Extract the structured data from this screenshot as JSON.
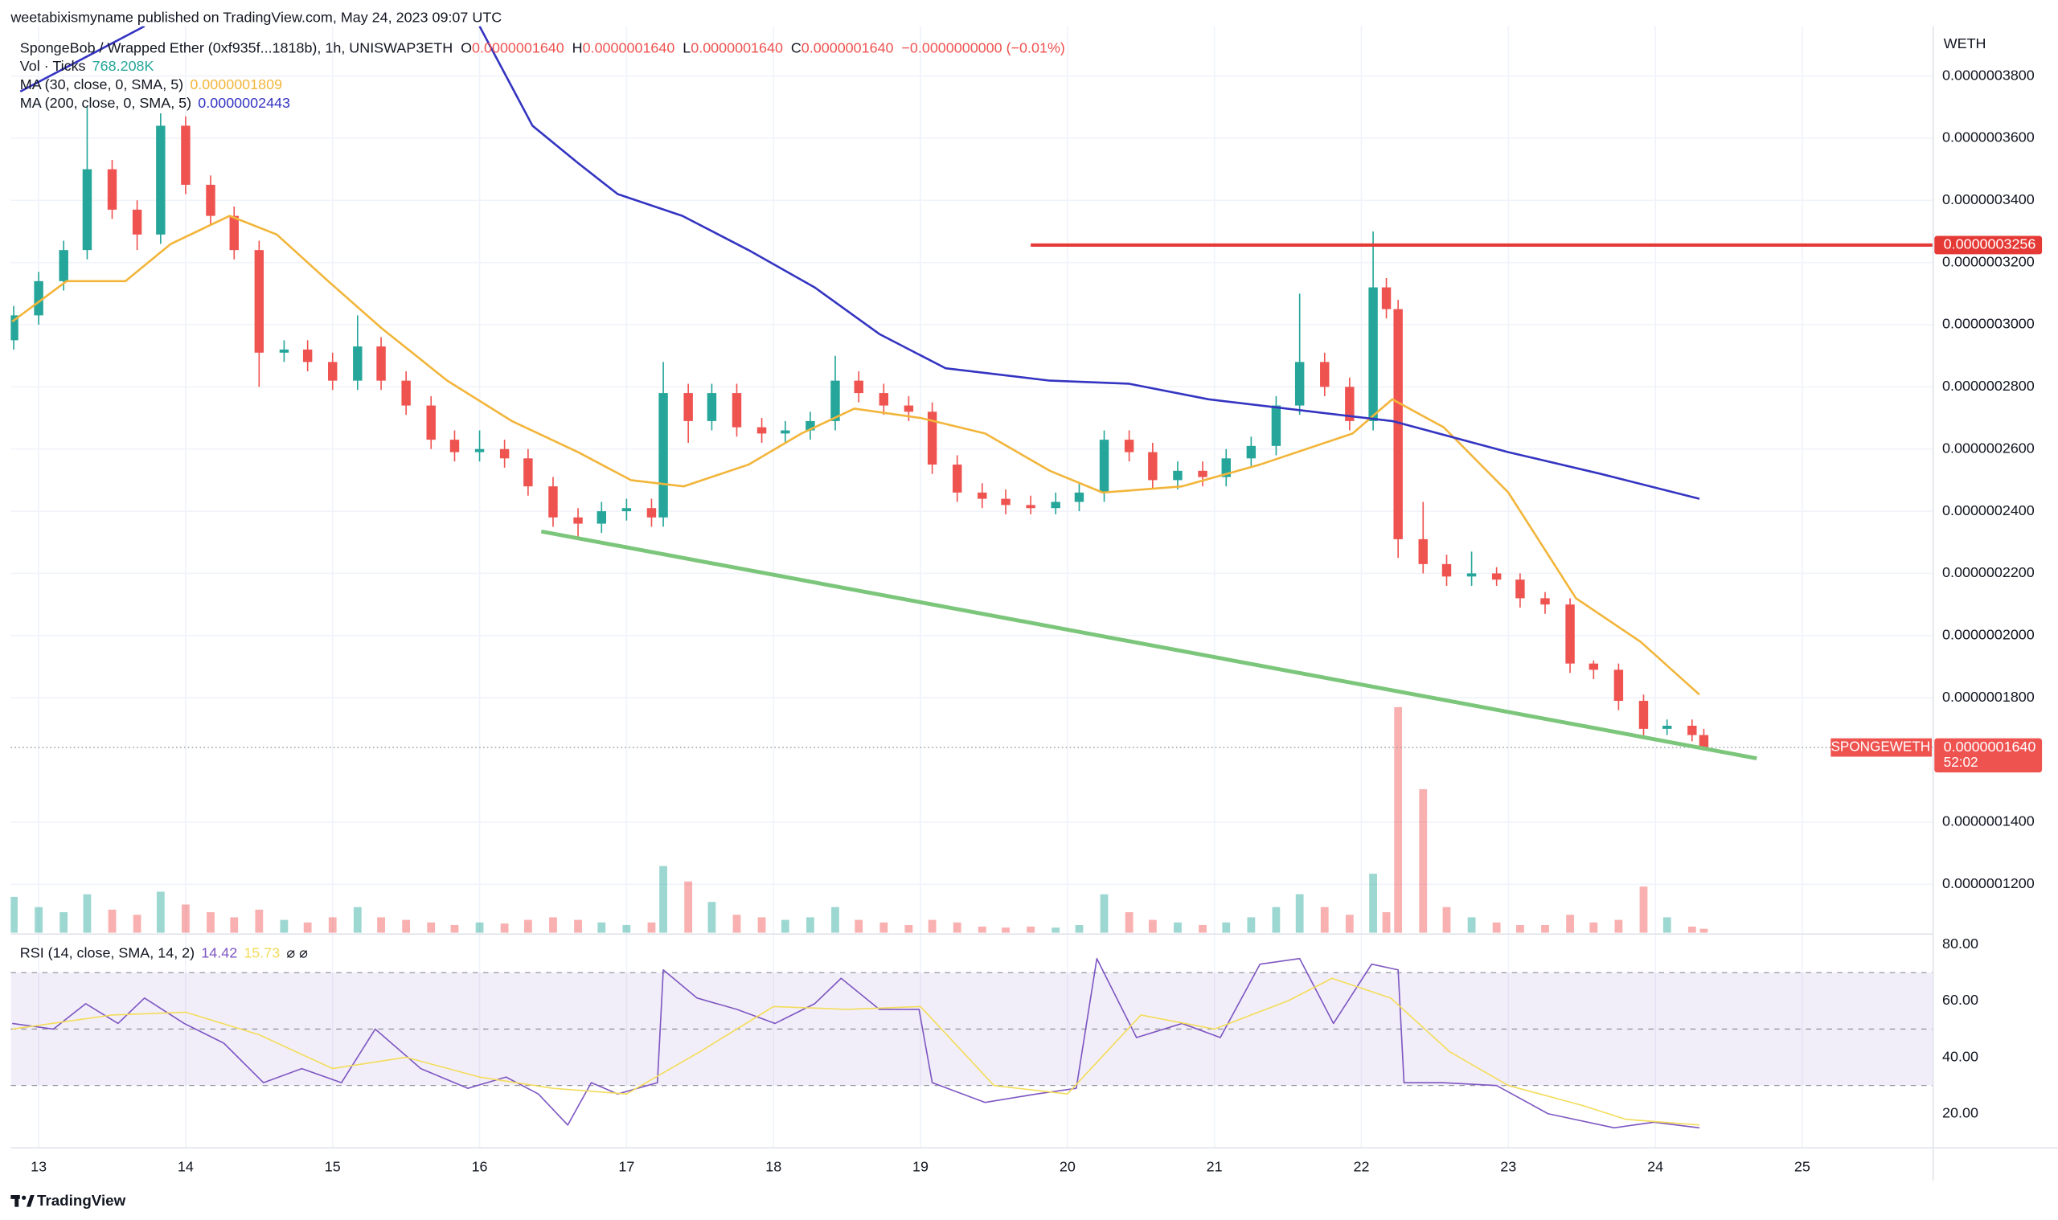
{
  "header": {
    "publisher": "weetabixismyname published on TradingView.com, May 24, 2023 09:07 UTC",
    "symbol": "SpongeBob / Wrapped Ether (0xf935f...1818b), 1h, UNISWAP3ETH",
    "ohlc": [
      {
        "key": "O",
        "value": "0.0000001640"
      },
      {
        "key": "H",
        "value": "0.0000001640"
      },
      {
        "key": "L",
        "value": "0.0000001640"
      },
      {
        "key": "C",
        "value": "0.0000001640"
      }
    ],
    "change": "−0.0000000000 (−0.01%)",
    "volume": {
      "label": "Vol · Ticks",
      "value": "768.208K"
    },
    "ma30": {
      "label": "MA (30, close, 0, SMA, 5)",
      "value": "0.0000001809"
    },
    "ma200": {
      "label": "MA (200, close, 0, SMA, 5)",
      "value": "0.0000002443"
    },
    "rsi": {
      "label": "RSI (14, close, SMA, 14, 2)",
      "value": "14.42",
      "ma_value": "15.73",
      "extra": "⌀ ⌀"
    }
  },
  "chart_data": [
    {
      "type": "candlestick",
      "currency": "WETH",
      "up_color": "#26a69a",
      "down_color": "#ef5350",
      "grid": true,
      "xlim": [
        12.81,
        25.89
      ],
      "xticks": [
        13,
        14,
        15,
        16,
        17,
        18,
        19,
        20,
        21,
        22,
        23,
        24,
        25
      ],
      "ylim": [
        1.04e-07,
        3.96e-07
      ],
      "yticks": [
        {
          "value": 3.8e-07,
          "label": "0.0000003800"
        },
        {
          "value": 3.6e-07,
          "label": "0.0000003600"
        },
        {
          "value": 3.4e-07,
          "label": "0.0000003400"
        },
        {
          "value": 3.2e-07,
          "label": "0.0000003200"
        },
        {
          "value": 3e-07,
          "label": "0.0000003000"
        },
        {
          "value": 2.8e-07,
          "label": "0.0000002800"
        },
        {
          "value": 2.6e-07,
          "label": "0.0000002600"
        },
        {
          "value": 2.4e-07,
          "label": "0.0000002400"
        },
        {
          "value": 2.2e-07,
          "label": "0.0000002200"
        },
        {
          "value": 2e-07,
          "label": "0.0000002000"
        },
        {
          "value": 1.8e-07,
          "label": "0.0000001800"
        },
        {
          "value": 1.4e-07,
          "label": "0.0000001400"
        },
        {
          "value": 1.2e-07,
          "label": "0.0000001200"
        }
      ],
      "x": [
        12.83,
        13.0,
        13.17,
        13.33,
        13.5,
        13.67,
        13.83,
        14.0,
        14.17,
        14.33,
        14.5,
        14.67,
        14.83,
        15.0,
        15.17,
        15.33,
        15.5,
        15.67,
        15.83,
        16.0,
        16.17,
        16.33,
        16.5,
        16.67,
        16.83,
        17.0,
        17.17,
        17.25,
        17.42,
        17.58,
        17.75,
        17.92,
        18.08,
        18.25,
        18.42,
        18.58,
        18.75,
        18.92,
        19.08,
        19.25,
        19.42,
        19.58,
        19.75,
        19.92,
        20.08,
        20.25,
        20.42,
        20.58,
        20.75,
        20.92,
        21.08,
        21.25,
        21.42,
        21.58,
        21.75,
        21.92,
        22.08,
        22.17,
        22.25,
        22.42,
        22.58,
        22.75,
        22.92,
        23.08,
        23.25,
        23.42,
        23.58,
        23.75,
        23.92,
        24.08,
        24.25,
        24.33
      ],
      "open": [
        2.95e-07,
        3.03e-07,
        3.14e-07,
        3.24e-07,
        3.5e-07,
        3.37e-07,
        3.29e-07,
        3.64e-07,
        3.45e-07,
        3.35e-07,
        3.24e-07,
        2.91e-07,
        2.92e-07,
        2.88e-07,
        2.82e-07,
        2.93e-07,
        2.82e-07,
        2.74e-07,
        2.63e-07,
        2.59e-07,
        2.6e-07,
        2.57e-07,
        2.48e-07,
        2.38e-07,
        2.36e-07,
        2.4e-07,
        2.41e-07,
        2.38e-07,
        2.78e-07,
        2.69e-07,
        2.78e-07,
        2.67e-07,
        2.65e-07,
        2.66e-07,
        2.69e-07,
        2.82e-07,
        2.78e-07,
        2.74e-07,
        2.72e-07,
        2.55e-07,
        2.46e-07,
        2.44e-07,
        2.42e-07,
        2.41e-07,
        2.43e-07,
        2.46e-07,
        2.63e-07,
        2.59e-07,
        2.5e-07,
        2.53e-07,
        2.51e-07,
        2.57e-07,
        2.61e-07,
        2.74e-07,
        2.88e-07,
        2.8e-07,
        2.69e-07,
        3.12e-07,
        3.05e-07,
        2.31e-07,
        2.23e-07,
        2.19e-07,
        2.2e-07,
        2.18e-07,
        2.12e-07,
        2.1e-07,
        1.91e-07,
        1.89e-07,
        1.79e-07,
        1.7e-07,
        1.71e-07,
        1.68e-07
      ],
      "high": [
        3.06e-07,
        3.17e-07,
        3.27e-07,
        3.7e-07,
        3.53e-07,
        3.4e-07,
        3.68e-07,
        3.67e-07,
        3.48e-07,
        3.38e-07,
        3.27e-07,
        2.95e-07,
        2.95e-07,
        2.91e-07,
        3.03e-07,
        2.96e-07,
        2.85e-07,
        2.77e-07,
        2.66e-07,
        2.66e-07,
        2.63e-07,
        2.6e-07,
        2.51e-07,
        2.41e-07,
        2.43e-07,
        2.44e-07,
        2.44e-07,
        2.88e-07,
        2.81e-07,
        2.81e-07,
        2.81e-07,
        2.7e-07,
        2.69e-07,
        2.72e-07,
        2.9e-07,
        2.85e-07,
        2.81e-07,
        2.77e-07,
        2.75e-07,
        2.58e-07,
        2.49e-07,
        2.47e-07,
        2.45e-07,
        2.46e-07,
        2.49e-07,
        2.66e-07,
        2.66e-07,
        2.62e-07,
        2.56e-07,
        2.56e-07,
        2.6e-07,
        2.64e-07,
        2.77e-07,
        3.1e-07,
        2.91e-07,
        2.83e-07,
        3.3e-07,
        3.15e-07,
        3.08e-07,
        2.43e-07,
        2.26e-07,
        2.27e-07,
        2.22e-07,
        2.2e-07,
        2.14e-07,
        2.12e-07,
        1.92e-07,
        1.91e-07,
        1.81e-07,
        1.73e-07,
        1.73e-07,
        1.7e-07
      ],
      "low": [
        2.92e-07,
        3e-07,
        3.11e-07,
        3.21e-07,
        3.34e-07,
        3.24e-07,
        3.26e-07,
        3.42e-07,
        3.32e-07,
        3.21e-07,
        2.8e-07,
        2.88e-07,
        2.85e-07,
        2.79e-07,
        2.79e-07,
        2.79e-07,
        2.71e-07,
        2.6e-07,
        2.56e-07,
        2.56e-07,
        2.54e-07,
        2.45e-07,
        2.35e-07,
        2.31e-07,
        2.33e-07,
        2.37e-07,
        2.35e-07,
        2.35e-07,
        2.62e-07,
        2.66e-07,
        2.64e-07,
        2.62e-07,
        2.62e-07,
        2.63e-07,
        2.66e-07,
        2.75e-07,
        2.71e-07,
        2.69e-07,
        2.52e-07,
        2.43e-07,
        2.41e-07,
        2.39e-07,
        2.39e-07,
        2.39e-07,
        2.4e-07,
        2.43e-07,
        2.56e-07,
        2.47e-07,
        2.47e-07,
        2.48e-07,
        2.48e-07,
        2.54e-07,
        2.58e-07,
        2.71e-07,
        2.77e-07,
        2.66e-07,
        2.66e-07,
        3.02e-07,
        2.25e-07,
        2.2e-07,
        2.16e-07,
        2.16e-07,
        2.16e-07,
        2.09e-07,
        2.07e-07,
        1.88e-07,
        1.86e-07,
        1.76e-07,
        1.67e-07,
        1.68e-07,
        1.66e-07,
        1.63e-07
      ],
      "close": [
        3.03e-07,
        3.14e-07,
        3.24e-07,
        3.5e-07,
        3.37e-07,
        3.29e-07,
        3.64e-07,
        3.45e-07,
        3.35e-07,
        3.24e-07,
        2.91e-07,
        2.92e-07,
        2.88e-07,
        2.82e-07,
        2.93e-07,
        2.82e-07,
        2.74e-07,
        2.63e-07,
        2.59e-07,
        2.6e-07,
        2.57e-07,
        2.48e-07,
        2.38e-07,
        2.36e-07,
        2.4e-07,
        2.41e-07,
        2.38e-07,
        2.78e-07,
        2.69e-07,
        2.78e-07,
        2.67e-07,
        2.65e-07,
        2.66e-07,
        2.69e-07,
        2.82e-07,
        2.78e-07,
        2.74e-07,
        2.72e-07,
        2.55e-07,
        2.46e-07,
        2.44e-07,
        2.42e-07,
        2.41e-07,
        2.43e-07,
        2.46e-07,
        2.63e-07,
        2.59e-07,
        2.5e-07,
        2.53e-07,
        2.51e-07,
        2.57e-07,
        2.61e-07,
        2.74e-07,
        2.88e-07,
        2.8e-07,
        2.69e-07,
        3.12e-07,
        3.05e-07,
        2.31e-07,
        2.23e-07,
        2.19e-07,
        2.2e-07,
        2.18e-07,
        2.12e-07,
        2.1e-07,
        1.91e-07,
        1.89e-07,
        1.79e-07,
        1.7e-07,
        1.71e-07,
        1.68e-07,
        1.64e-07
      ],
      "volume": [
        7000000,
        5000000,
        4000000,
        7500000,
        4500000,
        3500000,
        8000000,
        5500000,
        4000000,
        3000000,
        4500000,
        2500000,
        2000000,
        3000000,
        5000000,
        3000000,
        2500000,
        2000000,
        1500000,
        2000000,
        1800000,
        2500000,
        3000000,
        2500000,
        2000000,
        1500000,
        2000000,
        13000000,
        10000000,
        6000000,
        3500000,
        3000000,
        2500000,
        3000000,
        5000000,
        2500000,
        2000000,
        1500000,
        2500000,
        2000000,
        1200000,
        1000000,
        1200000,
        1000000,
        1500000,
        7500000,
        4000000,
        2500000,
        2000000,
        1500000,
        2000000,
        3000000,
        5000000,
        7500000,
        5000000,
        3500000,
        11500000,
        4000000,
        44000000,
        28000000,
        5000000,
        3000000,
        2000000,
        1500000,
        1500000,
        3500000,
        2000000,
        2500000,
        9000000,
        3000000,
        1200000,
        768208
      ],
      "ma_lines": [
        {
          "color": "#f2b53a",
          "x": [
            12.82,
            13.19,
            13.59,
            13.9,
            14.3,
            14.62,
            14.97,
            15.33,
            15.78,
            16.22,
            16.67,
            17.03,
            17.39,
            17.83,
            18.19,
            18.55,
            19.0,
            19.44,
            19.88,
            20.24,
            20.78,
            21.31,
            21.94,
            22.21,
            22.56,
            23.0,
            23.46,
            23.9,
            24.3
          ],
          "values": [
            3.01e-07,
            3.14e-07,
            3.14e-07,
            3.26e-07,
            3.35e-07,
            3.29e-07,
            3.14e-07,
            2.99e-07,
            2.82e-07,
            2.69e-07,
            2.59e-07,
            2.5e-07,
            2.48e-07,
            2.55e-07,
            2.65e-07,
            2.73e-07,
            2.7e-07,
            2.65e-07,
            2.53e-07,
            2.46e-07,
            2.48e-07,
            2.55e-07,
            2.65e-07,
            2.76e-07,
            2.67e-07,
            2.46e-07,
            2.12e-07,
            1.98e-07,
            1.81e-07
          ]
        },
        {
          "color": "#3434c2",
          "x": [
            12.875,
            13.72,
            null,
            16.0,
            16.36,
            16.67,
            16.94,
            17.38,
            17.83,
            18.28,
            18.72,
            19.17,
            19.88,
            20.42,
            20.96,
            21.67,
            22.21,
            23.0,
            23.63,
            24.3
          ],
          "values": [
            3.75e-07,
            3.96e-07,
            null,
            3.96e-07,
            3.64e-07,
            3.52e-07,
            3.42e-07,
            3.35e-07,
            3.24e-07,
            3.12e-07,
            2.97e-07,
            2.86e-07,
            2.82e-07,
            2.81e-07,
            2.76e-07,
            2.72e-07,
            2.69e-07,
            2.59e-07,
            2.52e-07,
            2.44e-07
          ]
        }
      ],
      "hline": {
        "x_start": 19.75,
        "value": 3.256e-07,
        "label": "0.0000003256",
        "color": "#e53935"
      },
      "trendline": {
        "x": [
          16.42,
          24.69
        ],
        "values": [
          2.335e-07,
          1.605e-07
        ],
        "color": "#7cc67c"
      },
      "last_price": {
        "value": 1.64e-07,
        "label": "0.0000001640",
        "symbol": "SPONGEWETH",
        "countdown": "52:02",
        "color": "#ef5350"
      }
    },
    {
      "type": "line",
      "ylim": [
        7.9,
        83.7
      ],
      "yticks": [
        {
          "value": 80,
          "label": "80.00"
        },
        {
          "value": 60,
          "label": "60.00"
        },
        {
          "value": 40,
          "label": "40.00"
        },
        {
          "value": 20,
          "label": "20.00"
        }
      ],
      "levels": [
        70,
        50,
        30
      ],
      "series": [
        {
          "color": "#7e57c2",
          "x": [
            12.82,
            13.1,
            13.32,
            13.54,
            13.72,
            13.99,
            14.26,
            14.53,
            14.79,
            15.06,
            15.29,
            15.6,
            15.92,
            16.18,
            16.4,
            16.6,
            16.76,
            16.94,
            17.21,
            17.25,
            17.48,
            17.75,
            18.01,
            18.28,
            18.46,
            18.72,
            18.99,
            19.08,
            19.44,
            19.79,
            20.06,
            20.2,
            20.47,
            20.78,
            21.04,
            21.31,
            21.58,
            21.81,
            22.07,
            22.25,
            22.29,
            22.56,
            22.92,
            23.27,
            23.72,
            23.99,
            24.3
          ],
          "values": [
            52,
            50,
            59,
            52,
            61,
            52,
            45,
            31,
            36,
            31,
            50,
            36,
            29,
            33,
            27,
            16,
            31,
            27,
            31,
            71,
            61,
            57,
            52,
            59,
            68,
            57,
            57,
            31,
            24,
            27,
            29,
            75,
            47,
            52,
            47,
            73,
            75,
            52,
            73,
            71,
            31,
            31,
            30,
            20,
            15,
            17,
            15
          ]
        },
        {
          "color": "#f3dc5a",
          "x": [
            12.82,
            13.5,
            14.0,
            14.5,
            15.0,
            15.5,
            16.0,
            16.5,
            17.0,
            17.5,
            18.0,
            18.5,
            19.0,
            19.5,
            20.0,
            20.5,
            21.0,
            21.5,
            21.8,
            22.2,
            22.6,
            23.0,
            23.5,
            23.8,
            24.3
          ],
          "values": [
            50,
            55,
            56,
            48,
            36,
            40,
            33,
            29,
            27,
            42,
            58,
            57,
            58,
            30,
            27,
            55,
            50,
            60,
            68,
            61,
            42,
            30,
            23,
            18,
            16
          ]
        }
      ]
    }
  ],
  "footer": {
    "brand": "TradingView"
  }
}
